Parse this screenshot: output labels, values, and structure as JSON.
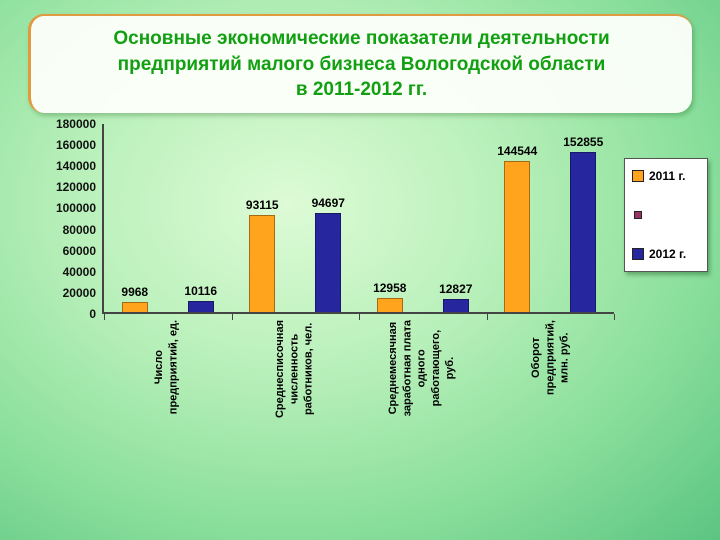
{
  "title": "Основные экономические показатели деятельности\nпредприятий малого бизнеса Вологодской области\nв 2011-2012 гг.",
  "colors": {
    "title_green": "#12a012",
    "accent_orange_border": "#e09a40",
    "bar_2011": "#FFA41C",
    "bar_2012": "#26269E",
    "legend_unused": "#993366",
    "background_green": "#8adf9b"
  },
  "chart_data": {
    "type": "bar",
    "title": "Основные экономические показатели деятельности предприятий малого бизнеса Вологодской области в 2011-2012 гг.",
    "categories": [
      "Число\nпредприятий, ед.",
      "Среднесписочная\nчисленность\nработников, чел.",
      "Среднемесячная\nзаработная плата\nодного\nработающего,\nруб.",
      "Оборот\nпредприятий,\nмлн. руб."
    ],
    "series": [
      {
        "name": "2011 г.",
        "color": "#FFA41C",
        "values": [
          9968,
          93115,
          12958,
          144544
        ]
      },
      {
        "name": "2012 г.",
        "color": "#26269E",
        "values": [
          10116,
          94697,
          12827,
          152855
        ]
      }
    ],
    "legend": [
      {
        "label": "2011 г.",
        "color": "#FFA41C"
      },
      {
        "label": "",
        "color": "#993366"
      },
      {
        "label": "2012 г.",
        "color": "#26269E"
      }
    ],
    "legend_position": "right",
    "grid": false,
    "xlabel": "",
    "ylabel": "",
    "ylim": [
      0,
      180000
    ],
    "ytick_step": 20000,
    "yticks": [
      "180000",
      "160000",
      "140000",
      "120000",
      "100000",
      "80000",
      "60000",
      "40000",
      "20000",
      "0"
    ]
  }
}
